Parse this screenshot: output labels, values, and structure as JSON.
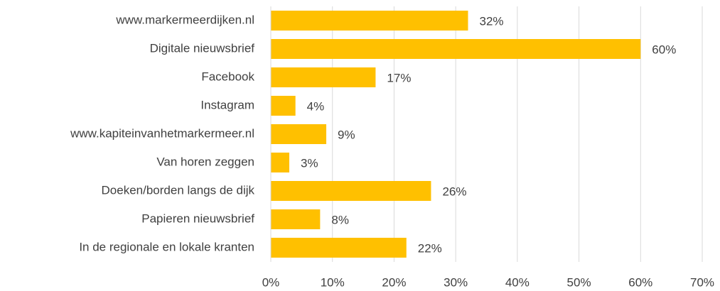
{
  "chart_data": {
    "type": "bar",
    "orientation": "horizontal",
    "categories": [
      "www.markermeerdijken.nl",
      "Digitale nieuwsbrief",
      "Facebook",
      "Instagram",
      "www.kapiteinvanhetmarkermeer.nl",
      "Van horen zeggen",
      "Doeken/borden langs de dijk",
      "Papieren nieuwsbrief",
      "In de regionale en lokale kranten"
    ],
    "values": [
      32,
      60,
      17,
      4,
      9,
      3,
      26,
      8,
      22
    ],
    "value_labels": [
      "32%",
      "60%",
      "17%",
      "4%",
      "9%",
      "3%",
      "26%",
      "8%",
      "22%"
    ],
    "color": "#ffc000",
    "xlim": [
      0,
      70
    ],
    "xticks": [
      {
        "value": 0,
        "label": "0%"
      },
      {
        "value": 10,
        "label": "10%"
      },
      {
        "value": 20,
        "label": "20%"
      },
      {
        "value": 30,
        "label": "30%"
      },
      {
        "value": 40,
        "label": "40%"
      },
      {
        "value": 50,
        "label": "50%"
      },
      {
        "value": 60,
        "label": "60%"
      },
      {
        "value": 70,
        "label": "70%"
      }
    ],
    "grid": true
  }
}
